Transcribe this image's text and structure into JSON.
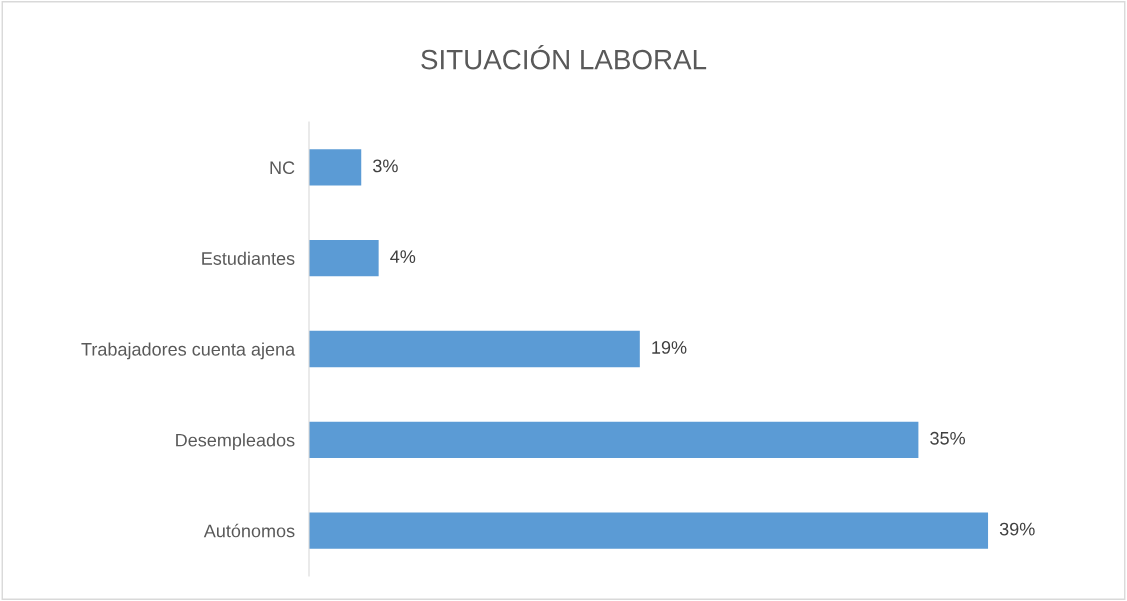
{
  "chart_data": {
    "type": "bar",
    "orientation": "horizontal",
    "title": "SITUACIÓN LABORAL",
    "categories": [
      "NC",
      "Estudiantes",
      "Trabajadores cuenta ajena",
      "Desempleados",
      "Autónomos"
    ],
    "values": [
      3,
      4,
      19,
      35,
      39
    ],
    "value_labels": [
      "3%",
      "4%",
      "19%",
      "35%",
      "39%"
    ],
    "color": "#5b9bd5",
    "grid": false,
    "legend": false,
    "tick_labels": "y"
  }
}
